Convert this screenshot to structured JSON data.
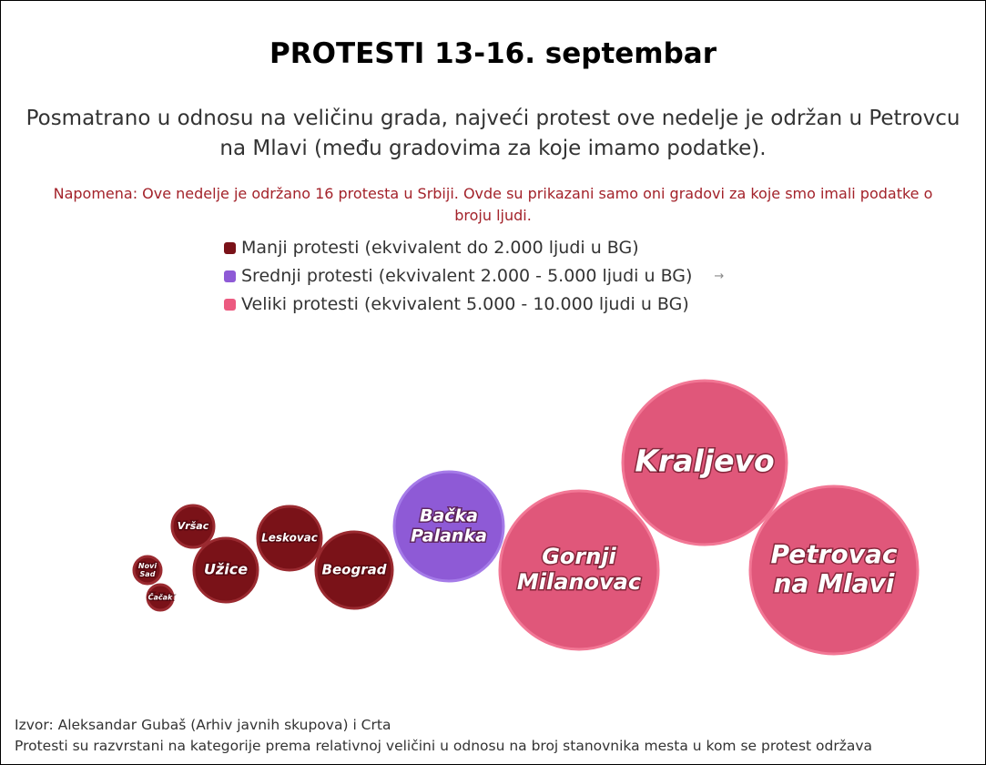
{
  "header": {
    "title": "PROTESTI 13-16. septembar",
    "subtitle": [
      "Posmatrano u odnosu na veličinu grada, najveći protest ove nedelje je održan u Petrovcu",
      "na Mlavi (među gradovima za koje imamo podatke)."
    ],
    "note": [
      "Napomena: Ove nedelje je održano 16 protesta u Srbiji. Ovde su prikazani samo oni gradovi za koje smo imali podatke o",
      "broju ljudi."
    ]
  },
  "legend": {
    "items": [
      "Manji protesti (ekvivalent do 2.000 ljudi u BG)",
      "Srednji protesti (ekvivalent 2.000 - 5.000 ljudi u BG)",
      "Veliki protesti (ekvivalent 5.000 - 10.000 ljudi u BG)"
    ],
    "arrow": "→"
  },
  "bubbles": [
    {
      "lines": [
        "Novi",
        "Sad"
      ]
    },
    {
      "lines": [
        "Čačak"
      ]
    },
    {
      "lines": [
        "Vršac"
      ]
    },
    {
      "lines": [
        "Užice"
      ]
    },
    {
      "lines": [
        "Leskovac"
      ]
    },
    {
      "lines": [
        "Beograd"
      ]
    },
    {
      "lines": [
        "Bačka",
        "Palanka"
      ]
    },
    {
      "lines": [
        "Gornji",
        "Milanovac"
      ]
    },
    {
      "lines": [
        "Kraljevo"
      ]
    },
    {
      "lines": [
        "Petrovac",
        "na Mlavi"
      ]
    }
  ],
  "footer": {
    "source": "Izvor: Aleksandar Gubaš (Arhiv javnih skupova) i Crta",
    "method": "Protesti su razvrstani na kategorije prema relativnoj veličini u odnosu na broj stanovnika mesta u kom se protest održava"
  }
}
